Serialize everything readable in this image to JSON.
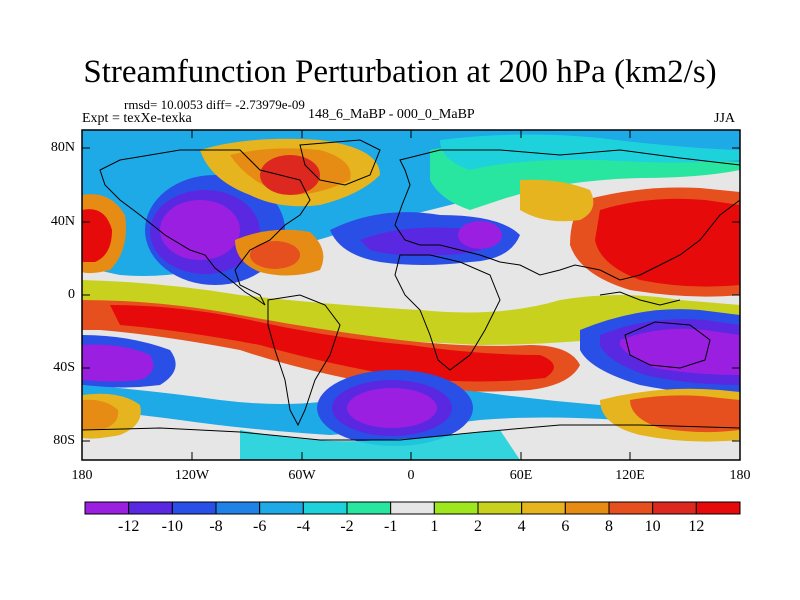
{
  "title": "Streamfunction Perturbation at 200 hPa (km2/s)",
  "stats": "rmsd= 10.0053 diff= -2.73979e-09",
  "expt": "Expt = texXe-texka",
  "case": "148_6_MaBP - 000_0_MaBP",
  "season": "JJA",
  "y_ticks": [
    "80N",
    "40N",
    "0",
    "40S",
    "80S"
  ],
  "x_ticks": [
    "180",
    "120W",
    "60W",
    "0",
    "60E",
    "120E",
    "180"
  ],
  "colorbar": {
    "labels": [
      "-12",
      "-10",
      "-8",
      "-6",
      "-4",
      "-2",
      "-1",
      "1",
      "2",
      "4",
      "6",
      "8",
      "10",
      "12"
    ],
    "colors": [
      "#9a1fe0",
      "#5a28e0",
      "#2a4fe6",
      "#1e82e6",
      "#1eaae6",
      "#1ed2dc",
      "#28e6a0",
      "#e6e6e6",
      "#9ee61e",
      "#c8d21e",
      "#e6b41e",
      "#e68c14",
      "#e6501e",
      "#dc281e",
      "#e60a0a"
    ]
  },
  "map": {
    "projection": "cylindrical-equidistant",
    "lon_range": [
      -180,
      180
    ],
    "lat_range": [
      -90,
      90
    ],
    "background": "#e6e6e6"
  }
}
